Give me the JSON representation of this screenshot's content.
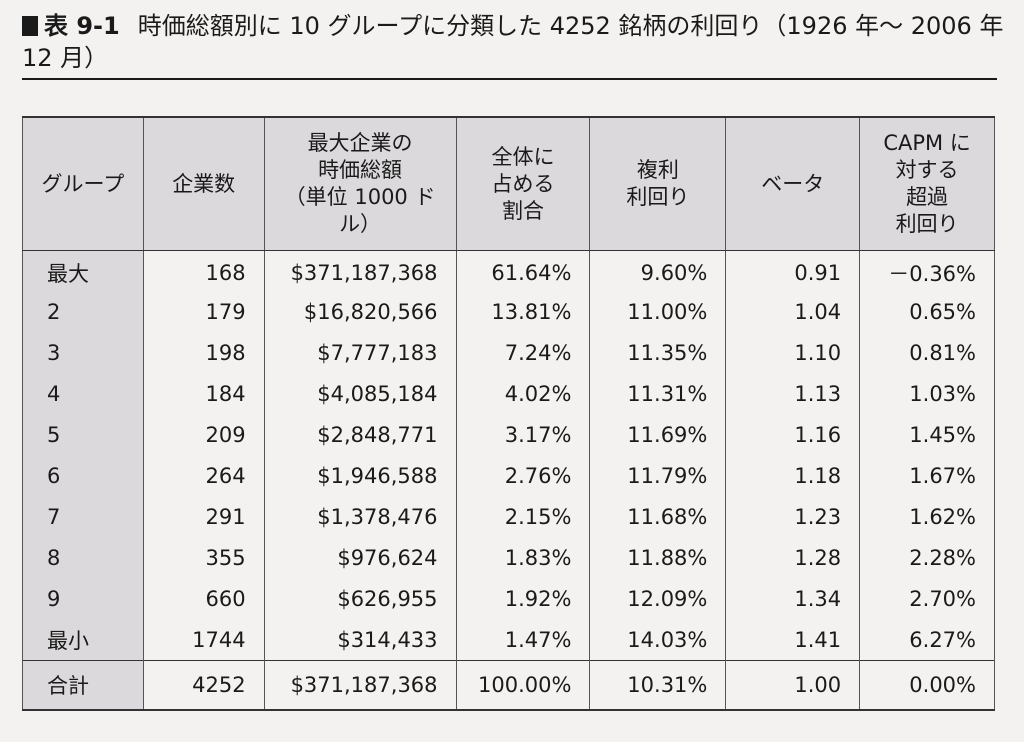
{
  "caption": {
    "label": "表 9-1",
    "text": "時価総額別に 10 グループに分類した 4252 銘柄の利回り（1926 年～ 2006 年 12 月）"
  },
  "table": {
    "headers": [
      "グループ",
      "企業数",
      "最大企業の\n時価総額\n（単位 1000 ドル）",
      "全体に\n占める\n割合",
      "複利\n利回り",
      "ベータ",
      "CAPM に\n対する\n超過\n利回り"
    ],
    "rows": [
      [
        "最大",
        "168",
        "$371,187,368",
        "61.64%",
        "9.60%",
        "0.91",
        "－0.36%"
      ],
      [
        "2",
        "179",
        "$16,820,566",
        "13.81%",
        "11.00%",
        "1.04",
        "0.65%"
      ],
      [
        "3",
        "198",
        "$7,777,183",
        "7.24%",
        "11.35%",
        "1.10",
        "0.81%"
      ],
      [
        "4",
        "184",
        "$4,085,184",
        "4.02%",
        "11.31%",
        "1.13",
        "1.03%"
      ],
      [
        "5",
        "209",
        "$2,848,771",
        "3.17%",
        "11.69%",
        "1.16",
        "1.45%"
      ],
      [
        "6",
        "264",
        "$1,946,588",
        "2.76%",
        "11.79%",
        "1.18",
        "1.67%"
      ],
      [
        "7",
        "291",
        "$1,378,476",
        "2.15%",
        "11.68%",
        "1.23",
        "1.62%"
      ],
      [
        "8",
        "355",
        "$976,624",
        "1.83%",
        "11.88%",
        "1.28",
        "2.28%"
      ],
      [
        "9",
        "660",
        "$626,955",
        "1.92%",
        "12.09%",
        "1.34",
        "2.70%"
      ],
      [
        "最小",
        "1744",
        "$314,433",
        "1.47%",
        "14.03%",
        "1.41",
        "6.27%"
      ]
    ],
    "total": [
      "合計",
      "4252",
      "$371,187,368",
      "100.00%",
      "10.31%",
      "1.00",
      "0.00%"
    ]
  }
}
